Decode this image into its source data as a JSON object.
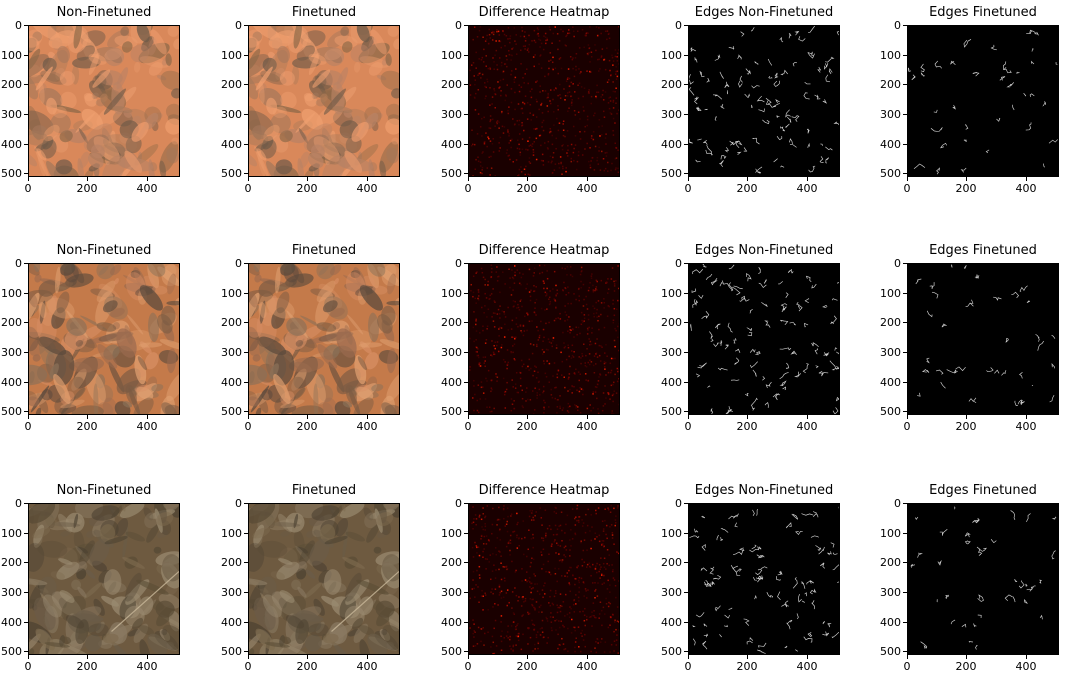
{
  "figure": {
    "rows": [
      {
        "panels": [
          {
            "title": "Non-Finetuned",
            "kind": "satellite-desert-red"
          },
          {
            "title": "Finetuned",
            "kind": "satellite-desert-red"
          },
          {
            "title": "Difference Heatmap",
            "kind": "difference-heatmap"
          },
          {
            "title": "Edges Non-Finetuned",
            "kind": "edge-map-dense"
          },
          {
            "title": "Edges Finetuned",
            "kind": "edge-map-sparse"
          }
        ]
      },
      {
        "panels": [
          {
            "title": "Non-Finetuned",
            "kind": "satellite-desert-orange"
          },
          {
            "title": "Finetuned",
            "kind": "satellite-desert-orange"
          },
          {
            "title": "Difference Heatmap",
            "kind": "difference-heatmap"
          },
          {
            "title": "Edges Non-Finetuned",
            "kind": "edge-map-dense"
          },
          {
            "title": "Edges Finetuned",
            "kind": "edge-map-sparse"
          }
        ]
      },
      {
        "panels": [
          {
            "title": "Non-Finetuned",
            "kind": "satellite-field-brown"
          },
          {
            "title": "Finetuned",
            "kind": "satellite-field-brown"
          },
          {
            "title": "Difference Heatmap",
            "kind": "difference-heatmap"
          },
          {
            "title": "Edges Non-Finetuned",
            "kind": "edge-map-dense"
          },
          {
            "title": "Edges Finetuned",
            "kind": "edge-map-sparse"
          }
        ]
      }
    ],
    "y_ticks": [
      "0",
      "100",
      "200",
      "300",
      "400",
      "500"
    ],
    "x_ticks": [
      "0",
      "200",
      "400"
    ],
    "colors": {
      "desert_red": "#d9885a",
      "desert_orange": "#c47a4a",
      "field_brown": "#6e5a40",
      "heatmap_base": "#1a0000",
      "heatmap_hot": "#ff2000",
      "edge_bg": "#000000",
      "edge_line": "#cfcfcf"
    }
  }
}
